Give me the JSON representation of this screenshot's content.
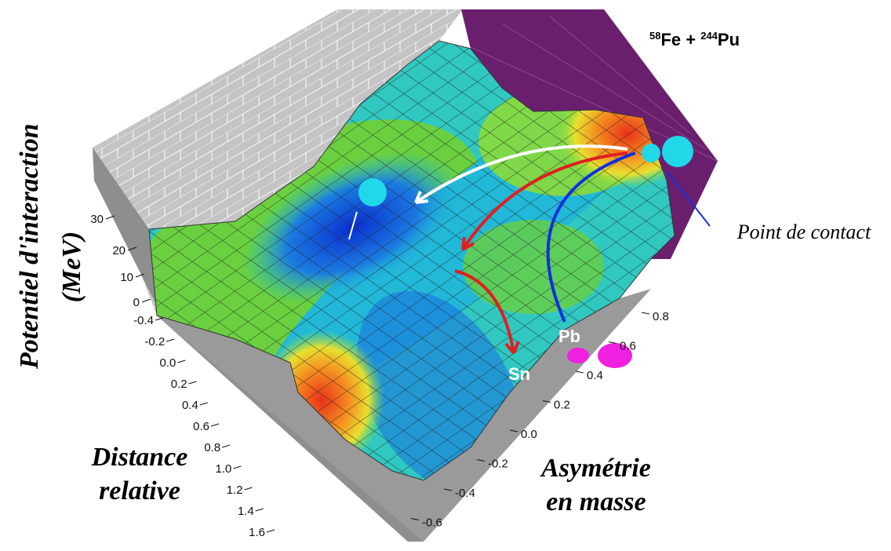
{
  "title": {
    "mass1": "58",
    "element1": "Fe + ",
    "mass2": "244",
    "element2": "Pu"
  },
  "z_axis": {
    "label_line1": "Potentiel d'interaction",
    "label_line2": "(MeV)",
    "ticks": [
      "30",
      "20",
      "10",
      "0"
    ]
  },
  "distance_axis": {
    "label_line1": "Distance",
    "label_line2": "relative",
    "ticks": [
      "-0.4",
      "-0.2",
      "0.0",
      "0.2",
      "0.4",
      "0.6",
      "0.8",
      "1.0",
      "1.2",
      "1.4",
      "1.6"
    ]
  },
  "asymmetry_axis": {
    "label_line1": "Asymétrie",
    "label_line2": "en masse",
    "ticks": [
      "0.8",
      "0.6",
      "0.4",
      "0.2",
      "0.0",
      "-0.2",
      "-0.4",
      "-0.6"
    ]
  },
  "annotations": {
    "contact_point": "Point de contact",
    "lead": "Pb",
    "tin": "Sn"
  }
}
